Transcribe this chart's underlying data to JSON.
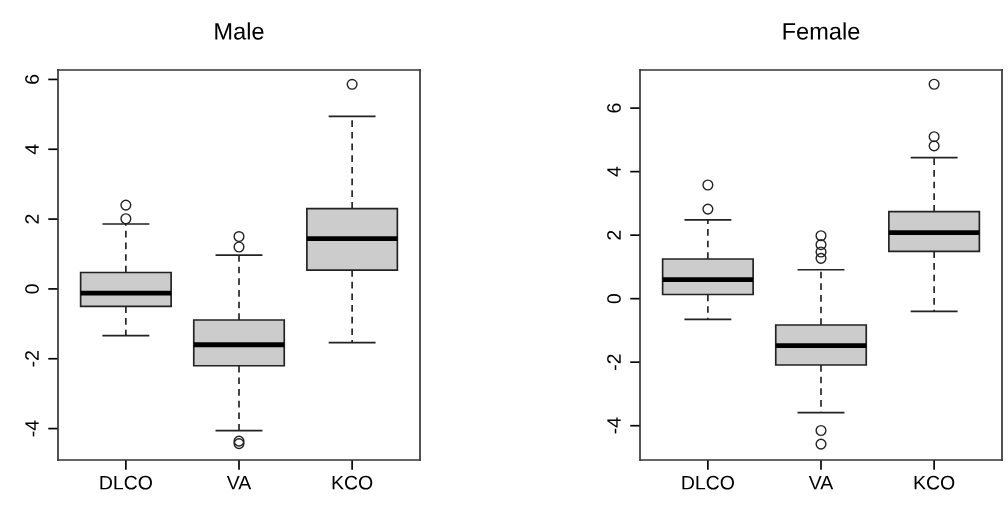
{
  "chart_data": [
    {
      "type": "box",
      "title": "Male",
      "categories": [
        "DLCO",
        "VA",
        "KCO"
      ],
      "ylim": [
        -4.9,
        6.27
      ],
      "yticks": [
        -4,
        -2,
        0,
        2,
        4,
        6
      ],
      "grid": false,
      "series": [
        {
          "color": "#cccccc",
          "boxes": [
            {
              "low": -1.34,
              "q1": -0.5,
              "median": -0.12,
              "q3": 0.47,
              "high": 1.86,
              "outliers": [
                2.4,
                2.01
              ]
            },
            {
              "low": -4.06,
              "q1": -2.2,
              "median": -1.6,
              "q3": -0.89,
              "high": 0.97,
              "outliers": [
                1.5,
                1.2,
                -4.36,
                -4.43
              ]
            },
            {
              "low": -1.54,
              "q1": 0.54,
              "median": 1.44,
              "q3": 2.3,
              "high": 4.94,
              "outliers": [
                5.86
              ]
            }
          ]
        }
      ]
    },
    {
      "type": "box",
      "title": "Female",
      "categories": [
        "DLCO",
        "VA",
        "KCO"
      ],
      "ylim": [
        -5.08,
        7.2
      ],
      "yticks": [
        -4,
        -2,
        0,
        2,
        4,
        6
      ],
      "grid": false,
      "series": [
        {
          "color": "#cccccc",
          "boxes": [
            {
              "low": -0.65,
              "q1": 0.13,
              "median": 0.6,
              "q3": 1.25,
              "high": 2.48,
              "outliers": [
                3.58,
                2.82
              ]
            },
            {
              "low": -3.59,
              "q1": -2.09,
              "median": -1.48,
              "q3": -0.83,
              "high": 0.91,
              "outliers": [
                1.98,
                1.7,
                1.47,
                1.27,
                -4.15,
                -4.58
              ]
            },
            {
              "low": -0.4,
              "q1": 1.49,
              "median": 2.08,
              "q3": 2.74,
              "high": 4.44,
              "outliers": [
                6.75,
                5.1,
                4.81
              ]
            }
          ]
        }
      ]
    }
  ]
}
